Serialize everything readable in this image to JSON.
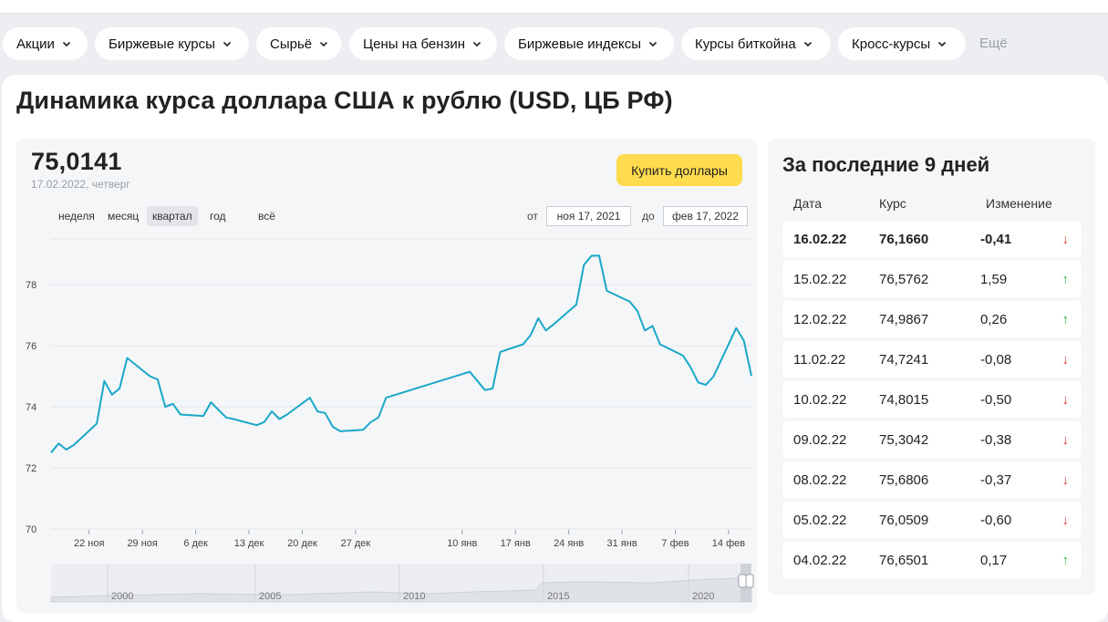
{
  "categories": [
    {
      "label": "Акции"
    },
    {
      "label": "Биржевые курсы"
    },
    {
      "label": "Сырьё"
    },
    {
      "label": "Цены на бензин"
    },
    {
      "label": "Биржевые индексы"
    },
    {
      "label": "Курсы биткойна"
    },
    {
      "label": "Кросс-курсы"
    }
  ],
  "more_label": "Ещё",
  "page_title": "Динамика курса доллара США к рублю (USD, ЦБ РФ)",
  "current": {
    "value": "75,0141",
    "date": "17.02.2022",
    "weekday": ", четверг"
  },
  "buy_button": "Купить доллары",
  "periods": [
    {
      "label": "неделя",
      "active": false
    },
    {
      "label": "месяц",
      "active": false
    },
    {
      "label": "квартал",
      "active": true
    },
    {
      "label": "год",
      "active": false
    },
    {
      "label": "всё",
      "active": false
    }
  ],
  "range": {
    "from_label": "от",
    "from": "ноя 17, 2021",
    "to_label": "до",
    "to": "фев 17, 2022"
  },
  "chart_data": {
    "type": "line",
    "x_tick_labels": [
      "22 ноя",
      "29 ноя",
      "6 дек",
      "13 дек",
      "20 дек",
      "27 дек",
      "10 янв",
      "17 янв",
      "24 янв",
      "31 янв",
      "7 фев",
      "14 фев"
    ],
    "y_ticks": [
      70,
      72,
      74,
      76,
      78
    ],
    "ylim": [
      70,
      79.5
    ],
    "grid": true,
    "series": [
      {
        "color": "#1aa7c8",
        "points": [
          [
            "2021-11-17",
            72.5
          ],
          [
            "2021-11-18",
            72.8
          ],
          [
            "2021-11-19",
            72.6
          ],
          [
            "2021-11-20",
            72.75
          ],
          [
            "2021-11-23",
            73.45
          ],
          [
            "2021-11-24",
            74.85
          ],
          [
            "2021-11-25",
            74.4
          ],
          [
            "2021-11-26",
            74.6
          ],
          [
            "2021-11-27",
            75.6
          ],
          [
            "2021-11-30",
            75.0
          ],
          [
            "2021-12-01",
            74.9
          ],
          [
            "2021-12-02",
            74.0
          ],
          [
            "2021-12-03",
            74.1
          ],
          [
            "2021-12-04",
            73.75
          ],
          [
            "2021-12-07",
            73.7
          ],
          [
            "2021-12-08",
            74.15
          ],
          [
            "2021-12-09",
            73.9
          ],
          [
            "2021-12-10",
            73.65
          ],
          [
            "2021-12-11",
            73.6
          ],
          [
            "2021-12-14",
            73.4
          ],
          [
            "2021-12-15",
            73.5
          ],
          [
            "2021-12-16",
            73.85
          ],
          [
            "2021-12-17",
            73.6
          ],
          [
            "2021-12-18",
            73.75
          ],
          [
            "2021-12-21",
            74.3
          ],
          [
            "2021-12-22",
            73.85
          ],
          [
            "2021-12-23",
            73.8
          ],
          [
            "2021-12-24",
            73.35
          ],
          [
            "2021-12-25",
            73.2
          ],
          [
            "2021-12-28",
            73.25
          ],
          [
            "2021-12-29",
            73.5
          ],
          [
            "2021-12-30",
            73.65
          ],
          [
            "2021-12-31",
            74.3
          ],
          [
            "2022-01-11",
            75.15
          ],
          [
            "2022-01-12",
            74.85
          ],
          [
            "2022-01-13",
            74.55
          ],
          [
            "2022-01-14",
            74.6
          ],
          [
            "2022-01-15",
            75.8
          ],
          [
            "2022-01-18",
            76.05
          ],
          [
            "2022-01-19",
            76.35
          ],
          [
            "2022-01-20",
            76.9
          ],
          [
            "2022-01-21",
            76.5
          ],
          [
            "2022-01-22",
            76.7
          ],
          [
            "2022-01-25",
            77.35
          ],
          [
            "2022-01-26",
            78.65
          ],
          [
            "2022-01-27",
            78.95
          ],
          [
            "2022-01-28",
            78.95
          ],
          [
            "2022-01-29",
            77.8
          ],
          [
            "2022-02-01",
            77.45
          ],
          [
            "2022-02-02",
            77.15
          ],
          [
            "2022-02-03",
            76.5
          ],
          [
            "2022-02-04",
            76.65
          ],
          [
            "2022-02-05",
            76.05
          ],
          [
            "2022-02-08",
            75.68
          ],
          [
            "2022-02-09",
            75.3
          ],
          [
            "2022-02-10",
            74.8
          ],
          [
            "2022-02-11",
            74.72
          ],
          [
            "2022-02-12",
            74.99
          ],
          [
            "2022-02-15",
            76.58
          ],
          [
            "2022-02-16",
            76.17
          ],
          [
            "2022-02-17",
            75.01
          ]
        ]
      }
    ],
    "navigator": {
      "labels": [
        "2000",
        "2005",
        "2010",
        "2015",
        "2020"
      ]
    }
  },
  "side": {
    "title": "За последние 9 дней",
    "headers": {
      "date": "Дата",
      "rate": "Курс",
      "change": "Изменение"
    },
    "rows": [
      {
        "date": "16.02.22",
        "rate": "76,1660",
        "change": "-0,41",
        "dir": "down",
        "bold": true
      },
      {
        "date": "15.02.22",
        "rate": "76,5762",
        "change": "1,59",
        "dir": "up",
        "bold": false
      },
      {
        "date": "12.02.22",
        "rate": "74,9867",
        "change": "0,26",
        "dir": "up",
        "bold": false
      },
      {
        "date": "11.02.22",
        "rate": "74,7241",
        "change": "-0,08",
        "dir": "down",
        "bold": false
      },
      {
        "date": "10.02.22",
        "rate": "74,8015",
        "change": "-0,50",
        "dir": "down",
        "bold": false
      },
      {
        "date": "09.02.22",
        "rate": "75,3042",
        "change": "-0,38",
        "dir": "down",
        "bold": false
      },
      {
        "date": "08.02.22",
        "rate": "75,6806",
        "change": "-0,37",
        "dir": "down",
        "bold": false
      },
      {
        "date": "05.02.22",
        "rate": "76,0509",
        "change": "-0,60",
        "dir": "down",
        "bold": false
      },
      {
        "date": "04.02.22",
        "rate": "76,6501",
        "change": "0,17",
        "dir": "up",
        "bold": false
      }
    ],
    "up_icon": "↑",
    "down_icon": "↓",
    "up_color": "#2fb34a",
    "down_color": "#e0322c"
  }
}
